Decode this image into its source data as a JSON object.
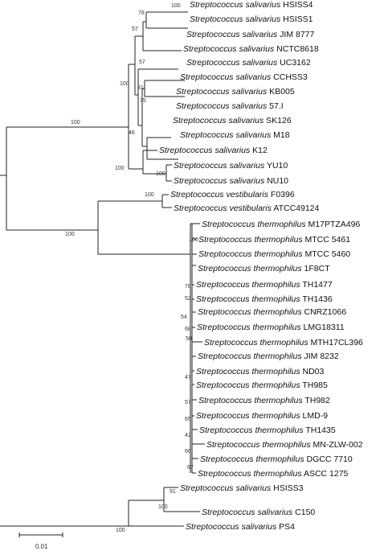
{
  "figure": {
    "scale_bar_label": "0.01"
  },
  "taxa": [
    {
      "genus": "Streptococcus",
      "species": "salivarius",
      "strain": "HSISS4"
    },
    {
      "genus": "Streptococcus",
      "species": "salivarius",
      "strain": "HSISS1"
    },
    {
      "genus": "Streptococcus",
      "species": "salivarius",
      "strain": "JIM 8777"
    },
    {
      "genus": "Streptococcus",
      "species": "salivarius",
      "strain": "NCTC8618"
    },
    {
      "genus": "Streptococcus",
      "species": "salivarius",
      "strain": "UC3162"
    },
    {
      "genus": "Streptococcus",
      "species": "salivarius",
      "strain": "CCHSS3"
    },
    {
      "genus": "Streptococcus",
      "species": "salivarius",
      "strain": "KB005"
    },
    {
      "genus": "Streptococcus",
      "species": "salivarius",
      "strain": "57.I"
    },
    {
      "genus": "Streptococcus",
      "species": "salivarius",
      "strain": "SK126"
    },
    {
      "genus": "Streptococcus",
      "species": "salivarius",
      "strain": "M18"
    },
    {
      "genus": "Streptococcus",
      "species": "salivarius",
      "strain": "K12"
    },
    {
      "genus": "Streptococcus",
      "species": "salivarius",
      "strain": "YU10"
    },
    {
      "genus": "Streptococcus",
      "species": "salivarius",
      "strain": "NU10"
    },
    {
      "genus": "Streptococcus",
      "species": "vestibularis",
      "strain": "F0396"
    },
    {
      "genus": "Streptococcus",
      "species": "vestibularis",
      "strain": "ATCC49124"
    },
    {
      "genus": "Streptococcus",
      "species": "thermophilus",
      "strain": "M17PTZA496"
    },
    {
      "genus": "Streptococcus",
      "species": "thermophilus",
      "strain": "MTCC 5461"
    },
    {
      "genus": "Streptococcus",
      "species": "thermophilus",
      "strain": "MTCC 5460"
    },
    {
      "genus": "Streptococcus",
      "species": "thermophilus",
      "strain": "1F8CT"
    },
    {
      "genus": "Streptococcus",
      "species": "thermophilus",
      "strain": "TH1477"
    },
    {
      "genus": "Streptococcus",
      "species": "thermophilus",
      "strain": "TH1436"
    },
    {
      "genus": "Streptococcus",
      "species": "thermophilus",
      "strain": "CNRZ1066"
    },
    {
      "genus": "Streptococcus",
      "species": "thermophilus",
      "strain": "LMG18311"
    },
    {
      "genus": "Streptococcus",
      "species": "thermophilus",
      "strain": "MTH17CL396"
    },
    {
      "genus": "Streptococcus",
      "species": "thermophilus",
      "strain": "JIM 8232"
    },
    {
      "genus": "Streptococcus",
      "species": "thermophilus",
      "strain": "ND03"
    },
    {
      "genus": "Streptococcus",
      "species": "thermophilus",
      "strain": "TH985"
    },
    {
      "genus": "Streptococcus",
      "species": "thermophilus",
      "strain": "TH982"
    },
    {
      "genus": "Streptococcus",
      "species": "thermophilus",
      "strain": "LMD-9"
    },
    {
      "genus": "Streptococcus",
      "species": "thermophilus",
      "strain": "TH1435"
    },
    {
      "genus": "Streptococcus",
      "species": "thermophilus",
      "strain": "MN-ZLW-002"
    },
    {
      "genus": "Streptococcus",
      "species": "thermophilus",
      "strain": "DGCC 7710"
    },
    {
      "genus": "Streptococcus",
      "species": "thermophilus",
      "strain": "ASCC 1275"
    },
    {
      "genus": "Streptococcus",
      "species": "salivarius",
      "strain": "HSISS3"
    },
    {
      "genus": "Streptococcus",
      "species": "salivarius",
      "strain": "C150"
    },
    {
      "genus": "Streptococcus",
      "species": "salivarius",
      "strain": "PS4"
    }
  ],
  "bootstrap": [
    "100",
    "78",
    "57",
    "57",
    "81",
    "75",
    "100",
    "46",
    "100",
    "100",
    "100",
    "100",
    "100",
    "100",
    "78",
    "52",
    "54",
    "68",
    "50",
    "47",
    "57",
    "65",
    "42",
    "66",
    "67",
    "91",
    "100"
  ]
}
